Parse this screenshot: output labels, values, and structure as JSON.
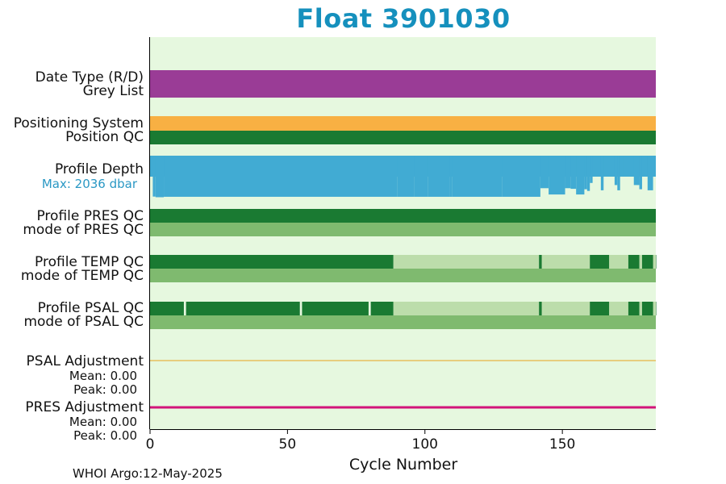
{
  "title": "Float 3901030",
  "title_color": "#1590bd",
  "footer": "WHOI Argo:12-May-2025",
  "chart_data": {
    "type": "bar",
    "xlabel": "Cycle Number",
    "xlim": [
      0,
      184
    ],
    "xticks": [
      "0",
      "50",
      "100",
      "150"
    ],
    "rows": [
      {
        "label": "Date Type (R/D)",
        "color": "#9a3c96",
        "segments": [
          [
            0,
            184
          ]
        ]
      },
      {
        "label": "Grey List",
        "segments": []
      },
      {
        "label": "Positioning System",
        "color": "#f8b043",
        "segments": [
          [
            0,
            184
          ]
        ]
      },
      {
        "label": "Position QC",
        "color": "#1a7a32",
        "segments": [
          [
            0,
            184
          ]
        ]
      },
      {
        "label": "Profile Depth",
        "sublabel": "Max: 2036 dbar",
        "color": "#41abd3"
      },
      {
        "label": "Profile PRES QC",
        "color": "#1a7a32",
        "segments": [
          [
            0,
            184
          ]
        ]
      },
      {
        "label": "mode of PRES QC",
        "color": "#7fba6f",
        "segments": [
          [
            0,
            184
          ]
        ]
      },
      {
        "label": "Profile TEMP QC",
        "color": "#1a7a32",
        "light_color": "#bcddab",
        "segments": [
          [
            0,
            88.5
          ],
          [
            141.5,
            142.5
          ],
          [
            160,
            167
          ],
          [
            174,
            178
          ],
          [
            179,
            183
          ],
          [
            184,
            188
          ]
        ],
        "light_segments": [
          [
            88.5,
            141.5
          ],
          [
            142.5,
            160
          ],
          [
            167,
            174
          ],
          [
            178,
            179
          ],
          [
            183,
            184
          ]
        ]
      },
      {
        "label": "mode of TEMP QC",
        "color": "#7fba6f",
        "segments": [
          [
            0,
            184
          ]
        ]
      },
      {
        "label": "Profile PSAL QC",
        "color": "#1a7a32",
        "light_color": "#bcddab",
        "segments": [
          [
            0,
            12.3
          ],
          [
            13.1,
            54.5
          ],
          [
            55.3,
            79.5
          ],
          [
            80.3,
            88.5
          ],
          [
            141.5,
            142.5
          ],
          [
            160,
            167
          ],
          [
            174,
            178
          ],
          [
            179,
            183
          ],
          [
            184,
            188
          ]
        ],
        "light_segments": [
          [
            88.5,
            141.5
          ],
          [
            142.5,
            160
          ],
          [
            167,
            174
          ],
          [
            178,
            179
          ],
          [
            183,
            184
          ]
        ]
      },
      {
        "label": "mode of PSAL QC",
        "color": "#7fba6f",
        "segments": [
          [
            0,
            184
          ]
        ]
      },
      {
        "label": "PSAL Adjustment",
        "mean": "Mean: 0.00",
        "peak": "Peak: 0.00",
        "color": "#e8a21e"
      },
      {
        "label": "PRES Adjustment",
        "mean": "Mean: 0.00",
        "peak": "Peak: 0.00",
        "color": "#d2147a"
      }
    ],
    "profile_depth": {
      "max_dbar": 2036,
      "depth_fraction_by_cycle_range": [
        [
          0,
          1,
          0.1
        ],
        [
          1,
          2,
          0.95
        ],
        [
          2,
          5,
          0.98
        ],
        [
          5,
          90,
          1.0
        ],
        [
          90,
          92,
          1.0
        ],
        [
          92,
          96,
          1.0
        ],
        [
          96,
          101,
          1.0
        ],
        [
          101,
          109,
          1.0
        ],
        [
          109,
          110,
          1.0
        ],
        [
          110,
          128,
          1.0
        ],
        [
          128,
          142,
          1.0
        ],
        [
          142,
          145,
          0.55
        ],
        [
          145,
          151,
          0.85
        ],
        [
          151,
          153,
          0.55
        ],
        [
          153,
          155,
          0.58
        ],
        [
          155,
          158,
          0.85
        ],
        [
          158,
          159,
          0.6
        ],
        [
          159,
          160,
          0.68
        ],
        [
          160,
          161,
          0.3
        ],
        [
          161,
          164,
          0.0
        ],
        [
          164,
          165,
          0.65
        ],
        [
          165,
          169,
          0.0
        ],
        [
          169,
          170,
          0.4
        ],
        [
          170,
          171,
          0.65
        ],
        [
          171,
          172,
          0.0
        ],
        [
          172,
          174,
          0.0
        ],
        [
          174,
          176,
          0.0
        ],
        [
          176,
          178,
          0.4
        ],
        [
          178,
          179,
          0.6
        ],
        [
          179,
          181,
          0.0
        ],
        [
          181,
          183,
          0.65
        ],
        [
          183,
          184,
          0.0
        ]
      ]
    },
    "adjustments": {
      "psal": 0.0,
      "pres": 0.0
    },
    "colors": {
      "background": "#e6f8df",
      "axis": "#000000"
    }
  }
}
